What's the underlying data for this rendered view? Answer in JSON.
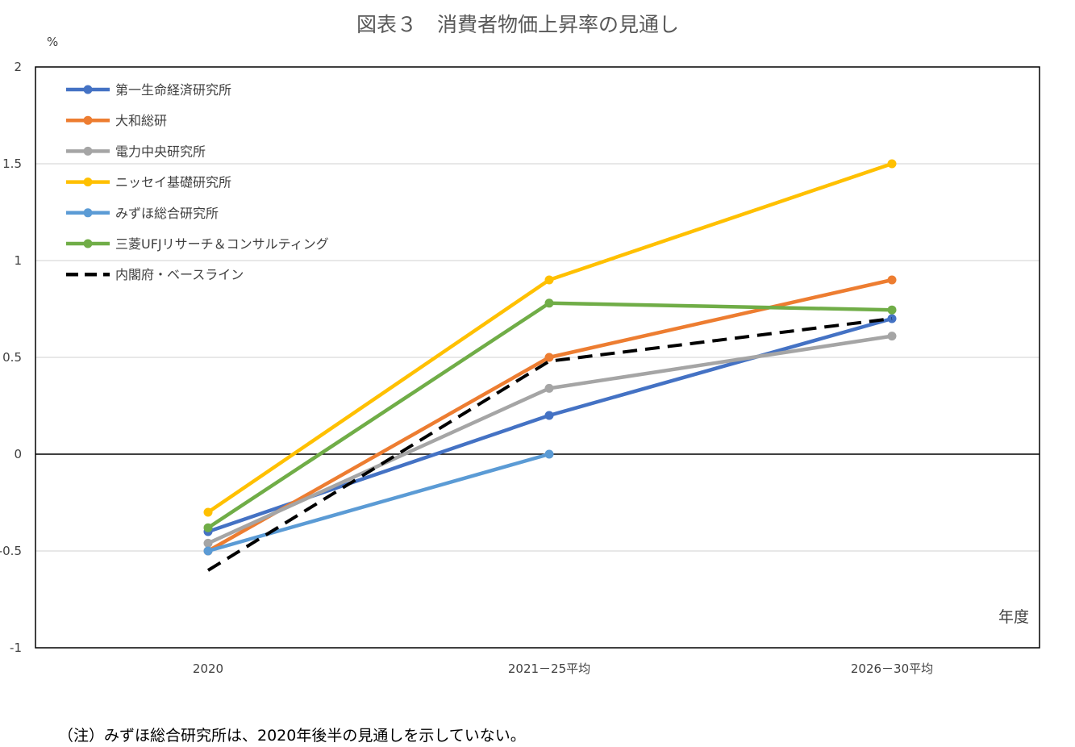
{
  "chart_data": {
    "type": "line",
    "title": "図表３　消費者物価上昇率の見通し",
    "ylabel": "%",
    "xlabel": "年度",
    "categories": [
      "2020",
      "2021－25平均",
      "2026－30平均"
    ],
    "ylim": [
      -1,
      2
    ],
    "yticks": [
      "2",
      "1.5",
      "1",
      "0.5",
      "0",
      "-0.5",
      "-1"
    ],
    "grid": true,
    "legend_position": "top-left",
    "series": [
      {
        "name": "第一生命経済研究所",
        "values": [
          -0.4,
          0.2,
          0.7
        ],
        "color": "#4472C4",
        "dashed": false
      },
      {
        "name": "大和総研",
        "values": [
          -0.5,
          0.5,
          0.9
        ],
        "color": "#ED7D31",
        "dashed": false
      },
      {
        "name": "電力中央研究所",
        "values": [
          -0.46,
          0.34,
          0.61
        ],
        "color": "#A5A5A5",
        "dashed": false
      },
      {
        "name": "ニッセイ基礎研究所",
        "values": [
          -0.3,
          0.9,
          1.5
        ],
        "color": "#FFC000",
        "dashed": false
      },
      {
        "name": "みずほ総合研究所",
        "values": [
          -0.5,
          0.0,
          null
        ],
        "color": "#5B9BD5",
        "dashed": false
      },
      {
        "name": "三菱UFJリサーチ＆コンサルティング",
        "values": [
          -0.38,
          0.78,
          0.745
        ],
        "color": "#70AD47",
        "dashed": false
      },
      {
        "name": "内閣府・ベースライン",
        "values": [
          -0.6,
          0.48,
          0.7
        ],
        "color": "#000000",
        "dashed": true
      }
    ]
  },
  "note": "（注）みずほ総合研究所は、2020年後半の見通しを示していない。"
}
